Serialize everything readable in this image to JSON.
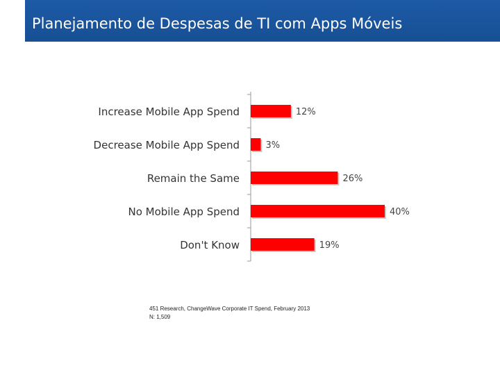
{
  "header": {
    "title": "Planejamento de Despesas de TI com Apps Móveis"
  },
  "chart_data": {
    "type": "bar",
    "orientation": "horizontal",
    "categories": [
      "Increase Mobile App Spend",
      "Decrease Mobile App Spend",
      "Remain the Same",
      "No Mobile App Spend",
      "Don't Know"
    ],
    "values": [
      12,
      3,
      26,
      40,
      19
    ],
    "value_labels": [
      "12%",
      "3%",
      "26%",
      "40%",
      "19%"
    ],
    "title": "",
    "xlabel": "",
    "ylabel": "",
    "xlim": [
      0,
      40
    ],
    "grid": false,
    "bar_color": "#ff0000"
  },
  "source": {
    "line1": "451 Research, ChangeWave Corporate IT Spend, February 2013",
    "line2": "N: 1,509"
  }
}
